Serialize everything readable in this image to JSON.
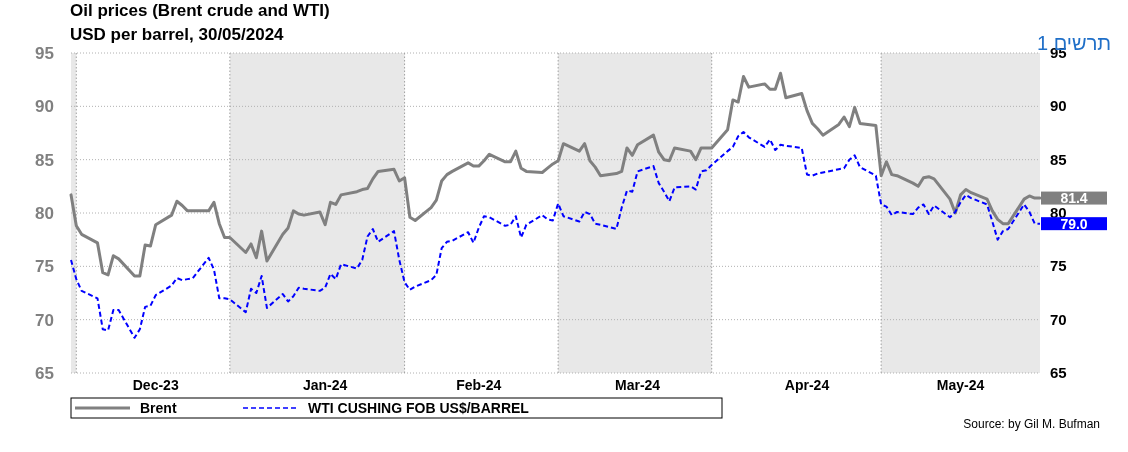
{
  "chart_data": {
    "type": "line",
    "title": "Oil prices (Brent crude and WTI)",
    "subtitle": "USD per barrel, 30/05/2024",
    "x": [
      "2023-11-29",
      "2023-11-30",
      "2023-12-01",
      "2023-12-04",
      "2023-12-05",
      "2023-12-06",
      "2023-12-07",
      "2023-12-08",
      "2023-12-11",
      "2023-12-12",
      "2023-12-13",
      "2023-12-14",
      "2023-12-15",
      "2023-12-18",
      "2023-12-19",
      "2023-12-20",
      "2023-12-21",
      "2023-12-22",
      "2023-12-25",
      "2023-12-26",
      "2023-12-27",
      "2023-12-28",
      "2023-12-29",
      "2024-01-01",
      "2024-01-02",
      "2024-01-03",
      "2024-01-04",
      "2024-01-05",
      "2024-01-08",
      "2024-01-09",
      "2024-01-10",
      "2024-01-11",
      "2024-01-12",
      "2024-01-15",
      "2024-01-16",
      "2024-01-17",
      "2024-01-18",
      "2024-01-19",
      "2024-01-22",
      "2024-01-23",
      "2024-01-24",
      "2024-01-25",
      "2024-01-26",
      "2024-01-29",
      "2024-01-30",
      "2024-01-31",
      "2024-02-01",
      "2024-02-02",
      "2024-02-05",
      "2024-02-06",
      "2024-02-07",
      "2024-02-08",
      "2024-02-09",
      "2024-02-12",
      "2024-02-13",
      "2024-02-14",
      "2024-02-15",
      "2024-02-16",
      "2024-02-19",
      "2024-02-20",
      "2024-02-21",
      "2024-02-22",
      "2024-02-23",
      "2024-02-26",
      "2024-02-27",
      "2024-02-28",
      "2024-02-29",
      "2024-03-01",
      "2024-03-04",
      "2024-03-05",
      "2024-03-06",
      "2024-03-07",
      "2024-03-08",
      "2024-03-11",
      "2024-03-12",
      "2024-03-13",
      "2024-03-14",
      "2024-03-15",
      "2024-03-18",
      "2024-03-19",
      "2024-03-20",
      "2024-03-21",
      "2024-03-22",
      "2024-03-25",
      "2024-03-26",
      "2024-03-27",
      "2024-03-28",
      "2024-03-29",
      "2024-04-01",
      "2024-04-02",
      "2024-04-03",
      "2024-04-04",
      "2024-04-05",
      "2024-04-08",
      "2024-04-09",
      "2024-04-10",
      "2024-04-11",
      "2024-04-12",
      "2024-04-15",
      "2024-04-16",
      "2024-04-17",
      "2024-04-18",
      "2024-04-19",
      "2024-04-22",
      "2024-04-23",
      "2024-04-24",
      "2024-04-25",
      "2024-04-26",
      "2024-04-29",
      "2024-04-30",
      "2024-05-01",
      "2024-05-02",
      "2024-05-03",
      "2024-05-06",
      "2024-05-07",
      "2024-05-08",
      "2024-05-09",
      "2024-05-10",
      "2024-05-13",
      "2024-05-14",
      "2024-05-15",
      "2024-05-16",
      "2024-05-17",
      "2024-05-20",
      "2024-05-21",
      "2024-05-22",
      "2024-05-23",
      "2024-05-24",
      "2024-05-27",
      "2024-05-28",
      "2024-05-29",
      "2024-05-30"
    ],
    "series": [
      {
        "name": "Brent",
        "color": "#808080",
        "line_style": "solid",
        "values": [
          81.7,
          78.8,
          78.0,
          77.2,
          74.4,
          74.2,
          76.0,
          75.7,
          74.1,
          74.1,
          77.0,
          76.9,
          78.9,
          79.8,
          81.1,
          80.7,
          80.2,
          80.2,
          80.2,
          81.0,
          79.0,
          77.7,
          77.7,
          76.3,
          77.1,
          75.8,
          78.3,
          75.5,
          78.0,
          78.6,
          80.2,
          79.9,
          79.8,
          80.1,
          78.9,
          81.0,
          80.8,
          81.7,
          82.0,
          82.2,
          82.3,
          83.2,
          83.9,
          84.1,
          83.0,
          83.3,
          79.6,
          79.3,
          80.5,
          81.2,
          83.0,
          83.6,
          83.9,
          84.7,
          84.4,
          84.4,
          84.9,
          85.5,
          84.8,
          84.8,
          85.8,
          84.2,
          83.9,
          83.8,
          84.2,
          84.6,
          84.9,
          86.5,
          85.8,
          86.5,
          84.9,
          84.3,
          83.5,
          83.7,
          83.9,
          86.1,
          85.4,
          86.4,
          87.3,
          85.7,
          85.0,
          84.9,
          86.1,
          85.8,
          85.0,
          86.1,
          86.1,
          86.1,
          87.8,
          90.6,
          90.4,
          92.8,
          91.8,
          92.1,
          91.6,
          91.6,
          93.1,
          90.8,
          91.2,
          89.6,
          88.4,
          87.9,
          87.3,
          88.3,
          89.0,
          88.1,
          89.9,
          88.4,
          88.2,
          83.5,
          84.8,
          83.6,
          83.5,
          82.8,
          82.5,
          83.3,
          83.4,
          83.2,
          81.3,
          80.0,
          81.7,
          82.2,
          81.9,
          81.3,
          80.2,
          79.4,
          79.0,
          79.0,
          81.3,
          81.6,
          81.4,
          81.4
        ]
      },
      {
        "name": "WTI CUSHING FOB US$/BARREL",
        "color": "#0000ff",
        "line_style": "dashed",
        "values": [
          75.6,
          73.8,
          72.7,
          72.0,
          69.1,
          69.0,
          70.9,
          70.9,
          68.3,
          69.1,
          71.2,
          71.3,
          72.3,
          73.2,
          73.9,
          73.7,
          73.8,
          73.9,
          75.8,
          74.7,
          72.0,
          72.0,
          71.9,
          70.7,
          72.9,
          72.5,
          74.1,
          71.1,
          72.4,
          71.7,
          72.2,
          73.0,
          72.9,
          72.7,
          73.0,
          74.3,
          73.8,
          75.2,
          74.8,
          75.6,
          77.8,
          78.5,
          77.3,
          78.3,
          75.6,
          73.5,
          72.8,
          73.1,
          73.7,
          74.2,
          76.7,
          77.3,
          77.4,
          78.2,
          77.2,
          78.6,
          79.7,
          79.6,
          78.8,
          78.9,
          79.7,
          77.7,
          78.9,
          79.8,
          79.4,
          79.3,
          80.9,
          79.7,
          79.2,
          80.1,
          79.9,
          79.0,
          78.9,
          78.5,
          80.5,
          82.1,
          82.0,
          83.9,
          84.4,
          82.8,
          82.0,
          81.1,
          82.4,
          82.5,
          82.2,
          83.9,
          84.0,
          84.5,
          85.8,
          86.2,
          87.2,
          87.6,
          87.1,
          86.2,
          86.9,
          85.9,
          86.4,
          86.3,
          86.1,
          83.6,
          83.5,
          83.7,
          83.8,
          84.1,
          84.2,
          85.0,
          85.4,
          84.3,
          83.5,
          80.8,
          80.6,
          79.8,
          80.1,
          79.9,
          80.5,
          80.8,
          79.9,
          80.7,
          79.6,
          80.1,
          81.0,
          81.7,
          81.4,
          80.8,
          79.2,
          77.5,
          78.3,
          78.5,
          80.8,
          80.1,
          79.0,
          79.0
        ]
      }
    ],
    "xlim": [
      "2023-11-29",
      "2024-05-30"
    ],
    "xticks": [
      {
        "value": "2023-12-15",
        "label": "Dec-23"
      },
      {
        "value": "2024-01-16",
        "label": "Jan-24"
      },
      {
        "value": "2024-02-14",
        "label": "Feb-24"
      },
      {
        "value": "2024-03-15",
        "label": "Mar-24"
      },
      {
        "value": "2024-04-16",
        "label": "Apr-24"
      },
      {
        "value": "2024-05-15",
        "label": "May-24"
      }
    ],
    "ylim": [
      65,
      95
    ],
    "yticks": [
      65,
      70,
      75,
      80,
      85,
      90,
      95
    ],
    "y2lim": [
      65,
      95
    ],
    "y2ticks": [
      65,
      70,
      75,
      80,
      85,
      90,
      95
    ],
    "grid": "y",
    "legend": "bottom",
    "bands": [
      {
        "axis": "x",
        "from": "2023-11-29",
        "to": "2023-11-30",
        "color": "#e8e8e8"
      },
      {
        "axis": "x",
        "from": "2023-12-29",
        "to": "2024-01-31",
        "color": "#e8e8e8"
      },
      {
        "axis": "x",
        "from": "2024-02-29",
        "to": "2024-03-29",
        "color": "#e8e8e8"
      },
      {
        "axis": "x",
        "from": "2024-04-30",
        "to": "2024-05-30",
        "color": "#e8e8e8"
      }
    ],
    "ref_lines": [
      {
        "axis": "x",
        "value": "2023-11-30",
        "color": "#a0a0a0",
        "line_style": "dotted"
      },
      {
        "axis": "x",
        "value": "2023-12-29",
        "color": "#a0a0a0",
        "line_style": "dotted"
      },
      {
        "axis": "x",
        "value": "2024-01-31",
        "color": "#a0a0a0",
        "line_style": "dotted"
      },
      {
        "axis": "x",
        "value": "2024-02-29",
        "color": "#a0a0a0",
        "line_style": "dotted"
      },
      {
        "axis": "x",
        "value": "2024-03-29",
        "color": "#a0a0a0",
        "line_style": "dotted"
      },
      {
        "axis": "x",
        "value": "2024-04-30",
        "color": "#a0a0a0",
        "line_style": "dotted"
      }
    ],
    "annotations": [
      "תרשים 1",
      "Source: by Gil M. Bufman",
      {
        "text": "81.4",
        "x": "2024-05-30",
        "y": 81.4
      },
      {
        "text": "79.0",
        "x": "2024-05-30",
        "y": 79.0
      }
    ]
  }
}
